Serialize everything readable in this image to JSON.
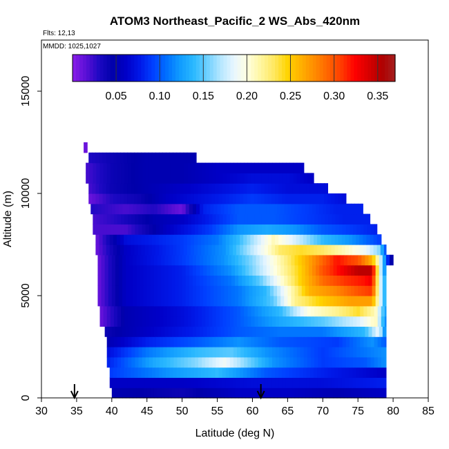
{
  "chart_data": {
    "type": "heatmap",
    "title": "ATOM3 Northeast_Pacific_2 WS_Abs_420nm",
    "flights_note": "Flts: 12,13",
    "dates_note": "MMDD: 1025,1027",
    "xlabel": "Latitude (deg N)",
    "ylabel": "Altitude (m)",
    "xlim": [
      30,
      85
    ],
    "ylim": [
      0,
      17500
    ],
    "x_ticks": [
      "30",
      "35",
      "40",
      "45",
      "50",
      "55",
      "60",
      "65",
      "70",
      "75",
      "80",
      "85"
    ],
    "y_ticks": [
      "0",
      "5000",
      "10000",
      "15000"
    ],
    "colorbar": {
      "range": [
        0,
        0.37
      ],
      "tick_labels": [
        "0.05",
        "0.10",
        "0.15",
        "0.20",
        "0.25",
        "0.30",
        "0.35"
      ],
      "colors": [
        "#8a1ee8",
        "#5a0fd6",
        "#1c08c2",
        "#0000aa",
        "#0000c8",
        "#0018e8",
        "#0040ff",
        "#0070ff",
        "#109cff",
        "#2ab8ff",
        "#6cd0ff",
        "#b4e6ff",
        "#e8f6ff",
        "#ffffe0",
        "#fff6a0",
        "#ffe860",
        "#ffd400",
        "#ffb000",
        "#ff8c00",
        "#ff6400",
        "#ff3c00",
        "#ff0000",
        "#d80000",
        "#b00000",
        "#a41e1e"
      ]
    },
    "arrow_latitudes": [
      34.7,
      61.2
    ],
    "altitude_bin_m": 500,
    "rows": [
      {
        "alt": 250,
        "lat": [
          40,
          79
        ],
        "vals": [
          [
            40,
            0.05
          ],
          [
            50,
            0.04
          ],
          [
            58,
            0.06
          ],
          [
            65,
            0.06
          ],
          [
            72,
            0.05
          ],
          [
            79,
            0.06
          ]
        ]
      },
      {
        "alt": 750,
        "lat": [
          39.7,
          79
        ],
        "vals": [
          [
            39.7,
            0.06
          ],
          [
            50,
            0.06
          ],
          [
            60,
            0.07
          ],
          [
            70,
            0.07
          ],
          [
            79,
            0.08
          ]
        ]
      },
      {
        "alt": 1250,
        "lat": [
          39.7,
          79
        ],
        "vals": [
          [
            39.7,
            0.09
          ],
          [
            48,
            0.12
          ],
          [
            55,
            0.14
          ],
          [
            62,
            0.1
          ],
          [
            70,
            0.08
          ],
          [
            79,
            0.06
          ]
        ]
      },
      {
        "alt": 1750,
        "lat": [
          39.3,
          79
        ],
        "vals": [
          [
            39.3,
            0.08
          ],
          [
            46,
            0.13
          ],
          [
            52,
            0.16
          ],
          [
            56,
            0.19
          ],
          [
            58,
            0.17
          ],
          [
            63,
            0.12
          ],
          [
            70,
            0.09
          ],
          [
            76,
            0.1
          ],
          [
            79,
            0.12
          ]
        ]
      },
      {
        "alt": 2250,
        "lat": [
          39.3,
          79
        ],
        "vals": [
          [
            39.3,
            0.07
          ],
          [
            45,
            0.11
          ],
          [
            52,
            0.14
          ],
          [
            57,
            0.15
          ],
          [
            62,
            0.12
          ],
          [
            70,
            0.09
          ],
          [
            76,
            0.11
          ],
          [
            79,
            0.12
          ]
        ]
      },
      {
        "alt": 2750,
        "lat": [
          39.3,
          79
        ],
        "vals": [
          [
            39.3,
            0.05
          ],
          [
            45,
            0.08
          ],
          [
            52,
            0.1
          ],
          [
            58,
            0.12
          ],
          [
            64,
            0.1
          ],
          [
            72,
            0.09
          ],
          [
            77,
            0.12
          ],
          [
            79,
            0.1
          ]
        ]
      },
      {
        "alt": 3250,
        "lat": [
          39,
          79
        ],
        "vals": [
          [
            39,
            0.04
          ],
          [
            45,
            0.06
          ],
          [
            52,
            0.08
          ],
          [
            58,
            0.1
          ],
          [
            64,
            0.11
          ],
          [
            70,
            0.11
          ],
          [
            76,
            0.14
          ],
          [
            78,
            0.19
          ],
          [
            79,
            0.1
          ]
        ]
      },
      {
        "alt": 3750,
        "lat": [
          38.3,
          79
        ],
        "vals": [
          [
            38.3,
            0.01
          ],
          [
            42,
            0.05
          ],
          [
            50,
            0.07
          ],
          [
            58,
            0.1
          ],
          [
            64,
            0.13
          ],
          [
            70,
            0.15
          ],
          [
            75,
            0.18
          ],
          [
            77.5,
            0.21
          ],
          [
            79,
            0.11
          ]
        ]
      },
      {
        "alt": 4250,
        "lat": [
          38.3,
          79
        ],
        "vals": [
          [
            38.3,
            0.01
          ],
          [
            42,
            0.05
          ],
          [
            50,
            0.07
          ],
          [
            58,
            0.1
          ],
          [
            64,
            0.14
          ],
          [
            68,
            0.2
          ],
          [
            72,
            0.22
          ],
          [
            75,
            0.24
          ],
          [
            77.5,
            0.21
          ],
          [
            79,
            0.12
          ]
        ]
      },
      {
        "alt": 4750,
        "lat": [
          38,
          79
        ],
        "vals": [
          [
            38,
            0.01
          ],
          [
            42,
            0.06
          ],
          [
            50,
            0.08
          ],
          [
            58,
            0.11
          ],
          [
            63,
            0.15
          ],
          [
            66,
            0.22
          ],
          [
            70,
            0.25
          ],
          [
            74,
            0.27
          ],
          [
            77,
            0.27
          ],
          [
            78,
            0.2
          ],
          [
            79,
            0.12
          ]
        ]
      },
      {
        "alt": 5250,
        "lat": [
          38,
          79
        ],
        "vals": [
          [
            38,
            0.01
          ],
          [
            42,
            0.06
          ],
          [
            50,
            0.08
          ],
          [
            58,
            0.11
          ],
          [
            62,
            0.14
          ],
          [
            65,
            0.2
          ],
          [
            68,
            0.26
          ],
          [
            72,
            0.28
          ],
          [
            75,
            0.3
          ],
          [
            77,
            0.31
          ],
          [
            78,
            0.2
          ],
          [
            79,
            0.12
          ]
        ]
      },
      {
        "alt": 5750,
        "lat": [
          38,
          79
        ],
        "vals": [
          [
            38,
            0.01
          ],
          [
            42,
            0.06
          ],
          [
            50,
            0.08
          ],
          [
            57,
            0.11
          ],
          [
            61,
            0.15
          ],
          [
            64,
            0.2
          ],
          [
            67,
            0.25
          ],
          [
            70,
            0.29
          ],
          [
            73,
            0.31
          ],
          [
            76,
            0.32
          ],
          [
            77,
            0.33
          ],
          [
            78,
            0.2
          ],
          [
            79,
            0.12
          ]
        ]
      },
      {
        "alt": 6250,
        "lat": [
          38,
          79
        ],
        "vals": [
          [
            38,
            0.01
          ],
          [
            42,
            0.06
          ],
          [
            50,
            0.08
          ],
          [
            57,
            0.12
          ],
          [
            61,
            0.17
          ],
          [
            64,
            0.21
          ],
          [
            67,
            0.25
          ],
          [
            70,
            0.3
          ],
          [
            73,
            0.33
          ],
          [
            75,
            0.35
          ],
          [
            77,
            0.35
          ],
          [
            78,
            0.2
          ],
          [
            79,
            0.1
          ]
        ]
      },
      {
        "alt": 6750,
        "lat": [
          38,
          80
        ],
        "vals": [
          [
            38,
            0.01
          ],
          [
            42,
            0.06
          ],
          [
            50,
            0.09
          ],
          [
            56,
            0.12
          ],
          [
            60,
            0.16
          ],
          [
            63,
            0.2
          ],
          [
            66,
            0.24
          ],
          [
            69,
            0.28
          ],
          [
            72,
            0.32
          ],
          [
            75,
            0.3
          ],
          [
            77,
            0.26
          ],
          [
            78,
            0.2
          ],
          [
            79,
            0.1
          ],
          [
            80,
            0.03
          ]
        ]
      },
      {
        "alt": 7250,
        "lat": [
          37.7,
          79
        ],
        "vals": [
          [
            37.7,
            0.01
          ],
          [
            42,
            0.06
          ],
          [
            50,
            0.09
          ],
          [
            56,
            0.12
          ],
          [
            59,
            0.16
          ],
          [
            62,
            0.2
          ],
          [
            64,
            0.23
          ],
          [
            67,
            0.24
          ],
          [
            70,
            0.23
          ],
          [
            73,
            0.21
          ],
          [
            76,
            0.19
          ],
          [
            78,
            0.16
          ],
          [
            79,
            0.09
          ]
        ]
      },
      {
        "alt": 7750,
        "lat": [
          37.7,
          78.3
        ],
        "vals": [
          [
            37.7,
            0.01
          ],
          [
            42,
            0.07
          ],
          [
            50,
            0.09
          ],
          [
            55,
            0.11
          ],
          [
            58,
            0.14
          ],
          [
            61,
            0.18
          ],
          [
            63,
            0.21
          ],
          [
            66,
            0.18
          ],
          [
            70,
            0.14
          ],
          [
            74,
            0.12
          ],
          [
            78.3,
            0.09
          ]
        ]
      },
      {
        "alt": 8250,
        "lat": [
          37.3,
          77.7
        ],
        "vals": [
          [
            37.3,
            0.02
          ],
          [
            42,
            0.02
          ],
          [
            48,
            0.06
          ],
          [
            54,
            0.09
          ],
          [
            58,
            0.12
          ],
          [
            62,
            0.13
          ],
          [
            66,
            0.12
          ],
          [
            70,
            0.1
          ],
          [
            74,
            0.09
          ],
          [
            77.7,
            0.08
          ]
        ]
      },
      {
        "alt": 8750,
        "lat": [
          37.3,
          76.7
        ],
        "vals": [
          [
            37.3,
            0.02
          ],
          [
            41,
            0.03
          ],
          [
            46,
            0.05
          ],
          [
            50,
            0.06
          ],
          [
            54,
            0.08
          ],
          [
            58,
            0.1
          ],
          [
            63,
            0.1
          ],
          [
            68,
            0.09
          ],
          [
            73,
            0.08
          ],
          [
            76.7,
            0.08
          ]
        ]
      },
      {
        "alt": 9250,
        "lat": [
          37,
          75.7
        ],
        "vals": [
          [
            37,
            0.03
          ],
          [
            42,
            0.02
          ],
          [
            46,
            0.03
          ],
          [
            50,
            0.01
          ],
          [
            53,
            0.08
          ],
          [
            58,
            0.1
          ],
          [
            63,
            0.1
          ],
          [
            68,
            0.09
          ],
          [
            72,
            0.08
          ],
          [
            75.7,
            0.08
          ]
        ]
      },
      {
        "alt": 9750,
        "lat": [
          36.7,
          73.3
        ],
        "vals": [
          [
            36.7,
            0.01
          ],
          [
            40,
            0.03
          ],
          [
            44,
            0.04
          ],
          [
            48,
            0.06
          ],
          [
            52,
            0.07
          ],
          [
            56,
            0.08
          ],
          [
            60,
            0.09
          ],
          [
            65,
            0.08
          ],
          [
            70,
            0.08
          ],
          [
            73.3,
            0.07
          ]
        ]
      },
      {
        "alt": 10250,
        "lat": [
          36.7,
          70.7
        ],
        "vals": [
          [
            36.7,
            0.02
          ],
          [
            40,
            0.04
          ],
          [
            45,
            0.05
          ],
          [
            50,
            0.06
          ],
          [
            55,
            0.07
          ],
          [
            60,
            0.08
          ],
          [
            65,
            0.07
          ],
          [
            70.7,
            0.07
          ]
        ]
      },
      {
        "alt": 10750,
        "lat": [
          36.3,
          68.7
        ],
        "vals": [
          [
            36.3,
            0.02
          ],
          [
            40,
            0.04
          ],
          [
            45,
            0.05
          ],
          [
            50,
            0.05
          ],
          [
            55,
            0.06
          ],
          [
            60,
            0.07
          ],
          [
            65,
            0.07
          ],
          [
            68.7,
            0.06
          ]
        ]
      },
      {
        "alt": 11250,
        "lat": [
          36.3,
          67.3
        ],
        "vals": [
          [
            36.3,
            0.02
          ],
          [
            40,
            0.04
          ],
          [
            45,
            0.05
          ],
          [
            50,
            0.05
          ],
          [
            55,
            0.06
          ],
          [
            60,
            0.06
          ],
          [
            67.3,
            0.06
          ]
        ]
      },
      {
        "alt": 11750,
        "lat": [
          36.7,
          52
        ],
        "vals": [
          [
            36.7,
            0.03
          ],
          [
            40,
            0.04
          ],
          [
            45,
            0.05
          ],
          [
            52,
            0.05
          ]
        ]
      },
      {
        "alt": 12250,
        "lat": [
          36,
          36.5
        ],
        "vals": [
          [
            36,
            0.01
          ],
          [
            36.5,
            0.01
          ]
        ]
      }
    ]
  }
}
